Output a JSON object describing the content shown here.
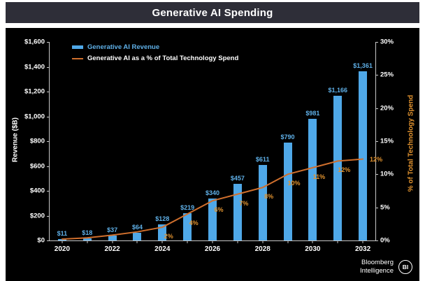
{
  "page": {
    "title": "Generative AI Spending"
  },
  "legend": {
    "bar_label": "Generative AI Revenue",
    "line_label": "Generative AI as a % of Total Technology Spend"
  },
  "branding": {
    "name_line1": "Bloomberg",
    "name_line2": "Intelligence",
    "logo_text": "BI"
  },
  "colors": {
    "bar": "#4fa8e8",
    "bar_label": "#5fb0e8",
    "line": "#cf6f2d",
    "pct_label": "#e2932f",
    "axis_text": "#ffffff",
    "right_axis_title": "#e2932f",
    "chart_background": "#000000",
    "titlebar_background": "#2e2e38"
  },
  "chart_data": {
    "type": "bar",
    "subtype": "bar+line combo, dual axis",
    "title": "Generative AI Spending",
    "categories": [
      "2020",
      "2021",
      "2022",
      "2023",
      "2024",
      "2025",
      "2026",
      "2027",
      "2028",
      "2029",
      "2030",
      "2031",
      "2032"
    ],
    "series": [
      {
        "name": "Generative AI Revenue",
        "type": "bar",
        "axis": "left",
        "color": "#4fa8e8",
        "values": [
          11,
          18,
          37,
          64,
          128,
          219,
          340,
          457,
          611,
          790,
          981,
          1166,
          1361
        ],
        "labels": [
          "$11",
          "$18",
          "$37",
          "$64",
          "$128",
          "$219",
          "$340",
          "$457",
          "$611",
          "$790",
          "$981",
          "$1,166",
          "$1,361"
        ]
      },
      {
        "name": "Generative AI as a % of Total Technology Spend",
        "type": "line",
        "axis": "right",
        "color": "#cf6f2d",
        "values": [
          0.2,
          0.4,
          0.8,
          1.3,
          2,
          4,
          6,
          7,
          8,
          10,
          11,
          12,
          12.3
        ],
        "labels": [
          "",
          "",
          "",
          "",
          "2%",
          "4%",
          "6%",
          "7%",
          "8%",
          "10%",
          "11%",
          "12%",
          "12%"
        ]
      }
    ],
    "left_axis": {
      "title": "Revenue ($B)",
      "min": 0,
      "max": 1600,
      "tick_step": 200,
      "tick_labels": [
        "$0",
        "$200",
        "$400",
        "$600",
        "$800",
        "$1,000",
        "$1,200",
        "$1,400",
        "$1,600"
      ]
    },
    "right_axis": {
      "title": "% of Total Technology Spend",
      "min": 0,
      "max": 30,
      "tick_step": 5,
      "tick_labels": [
        "0%",
        "5%",
        "10%",
        "15%",
        "20%",
        "25%",
        "30%"
      ]
    },
    "x_axis": {
      "labeled_ticks": [
        "2020",
        "2022",
        "2024",
        "2026",
        "2028",
        "2030",
        "2032"
      ]
    },
    "grid": false,
    "legend_position": "top-left"
  }
}
